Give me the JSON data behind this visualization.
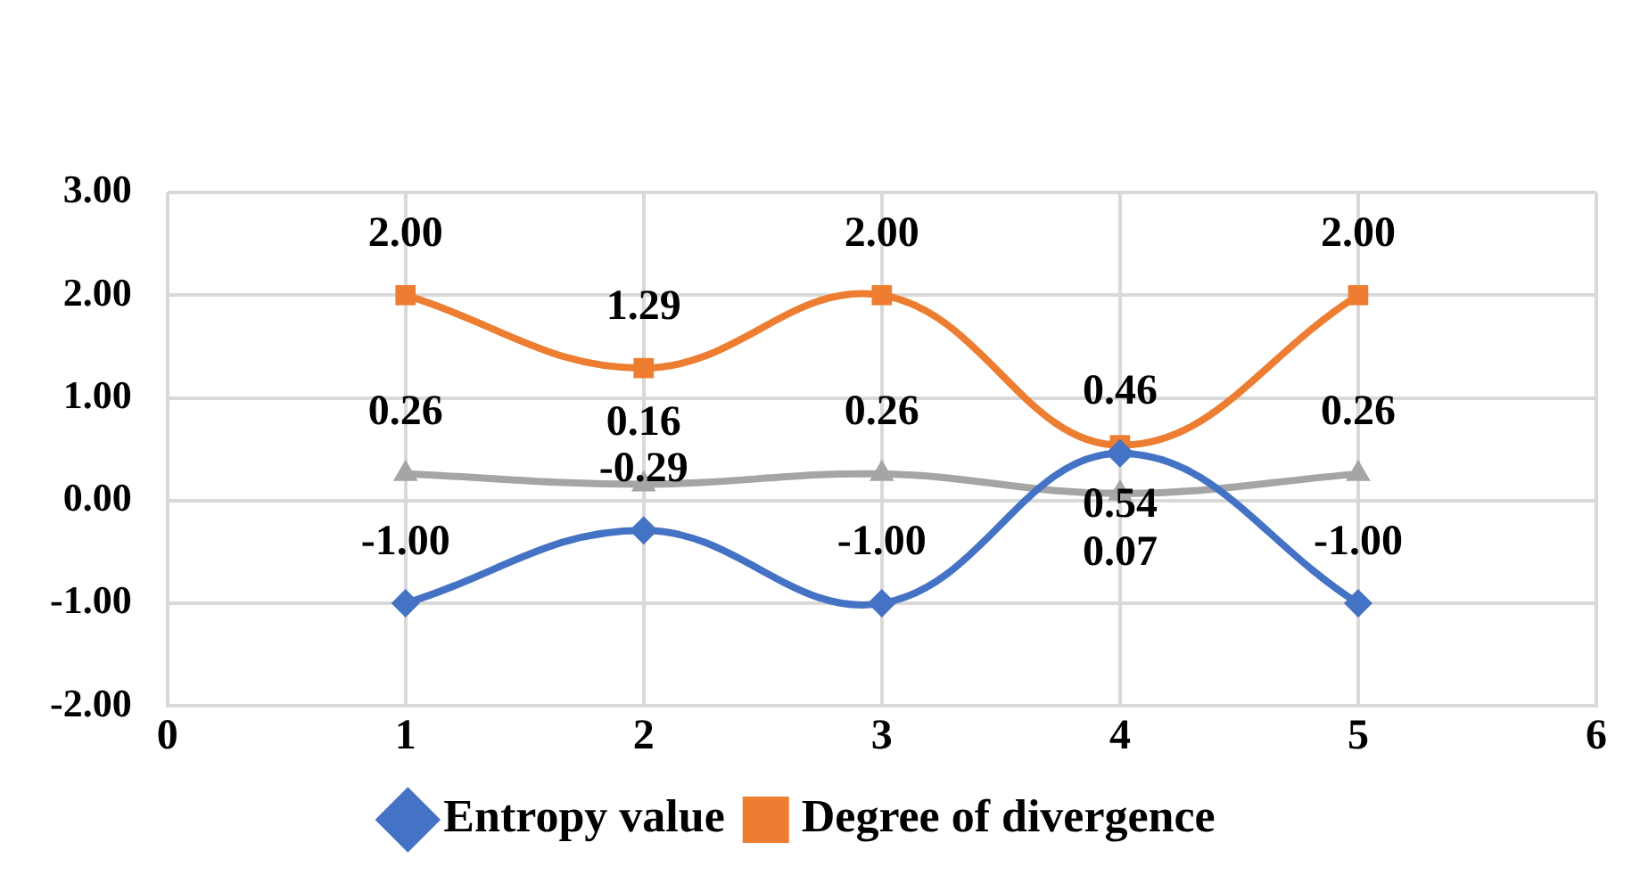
{
  "chart_data": {
    "type": "line",
    "x": [
      1,
      2,
      3,
      4,
      5
    ],
    "series": [
      {
        "name": "Entropy value",
        "color": "#4472c4",
        "marker": "diamond",
        "values": [
          -1.0,
          -0.29,
          -1.0,
          0.46,
          -1.0
        ],
        "value_labels": [
          "-1.00",
          "-0.29",
          "-1.00",
          "0.46",
          "-1.00"
        ]
      },
      {
        "name": "Degree of divergence",
        "color": "#ed7d31",
        "marker": "square",
        "values": [
          2.0,
          1.29,
          2.0,
          0.54,
          2.0
        ],
        "value_labels": [
          "2.00",
          "1.29",
          "2.00",
          "0.54",
          "2.00"
        ]
      },
      {
        "color": "#a5a5a5",
        "marker": "triangle",
        "values": [
          0.26,
          0.16,
          0.26,
          0.07,
          0.26
        ],
        "value_labels": [
          "0.26",
          "0.16",
          "0.26",
          "0.07",
          "0.26"
        ]
      }
    ],
    "xlim": [
      0,
      6
    ],
    "xticks": [
      0,
      1,
      2,
      3,
      4,
      5,
      6
    ],
    "ylim": [
      -2,
      3
    ],
    "yticks": [
      {
        "value": -2,
        "label": "-2.00"
      },
      {
        "value": -1,
        "label": "-1.00"
      },
      {
        "value": 0,
        "label": "0.00"
      },
      {
        "value": 1,
        "label": "1.00"
      },
      {
        "value": 2,
        "label": "2.00"
      },
      {
        "value": 3,
        "label": "3.00"
      }
    ],
    "grid": true,
    "legend": "bottom"
  }
}
